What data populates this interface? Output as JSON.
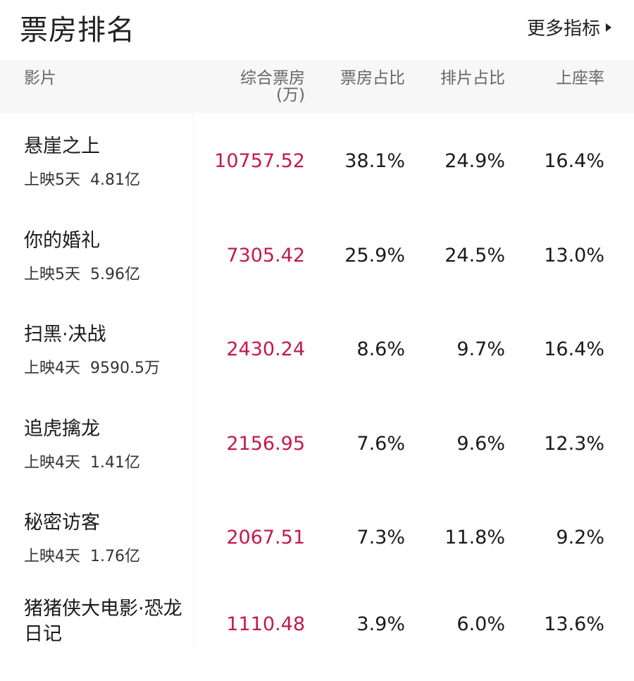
{
  "title": "票房排名",
  "more_label": "更多指标",
  "colors": {
    "accent": "#c41a4b"
  },
  "columns": {
    "film": "影片",
    "box": "综合票房",
    "box_unit": "(万)",
    "box_share": "票房占比",
    "show_share": "排片占比",
    "seat_rate": "上座率"
  },
  "rows": [
    {
      "name": "悬崖之上",
      "days": "上映5天",
      "total": "4.81亿",
      "box": "10757.52",
      "box_share": "38.1%",
      "show_share": "24.9%",
      "seat_rate": "16.4%"
    },
    {
      "name": "你的婚礼",
      "days": "上映5天",
      "total": "5.96亿",
      "box": "7305.42",
      "box_share": "25.9%",
      "show_share": "24.5%",
      "seat_rate": "13.0%"
    },
    {
      "name": "扫黑·决战",
      "days": "上映4天",
      "total": "9590.5万",
      "box": "2430.24",
      "box_share": "8.6%",
      "show_share": "9.7%",
      "seat_rate": "16.4%"
    },
    {
      "name": "追虎擒龙",
      "days": "上映4天",
      "total": "1.41亿",
      "box": "2156.95",
      "box_share": "7.6%",
      "show_share": "9.6%",
      "seat_rate": "12.3%"
    },
    {
      "name": "秘密访客",
      "days": "上映4天",
      "total": "1.76亿",
      "box": "2067.51",
      "box_share": "7.3%",
      "show_share": "11.8%",
      "seat_rate": "9.2%"
    },
    {
      "name": "猪猪侠大电影·恐龙日记",
      "box": "1110.48",
      "box_share": "3.9%",
      "show_share": "6.0%",
      "seat_rate": "13.6%"
    }
  ]
}
